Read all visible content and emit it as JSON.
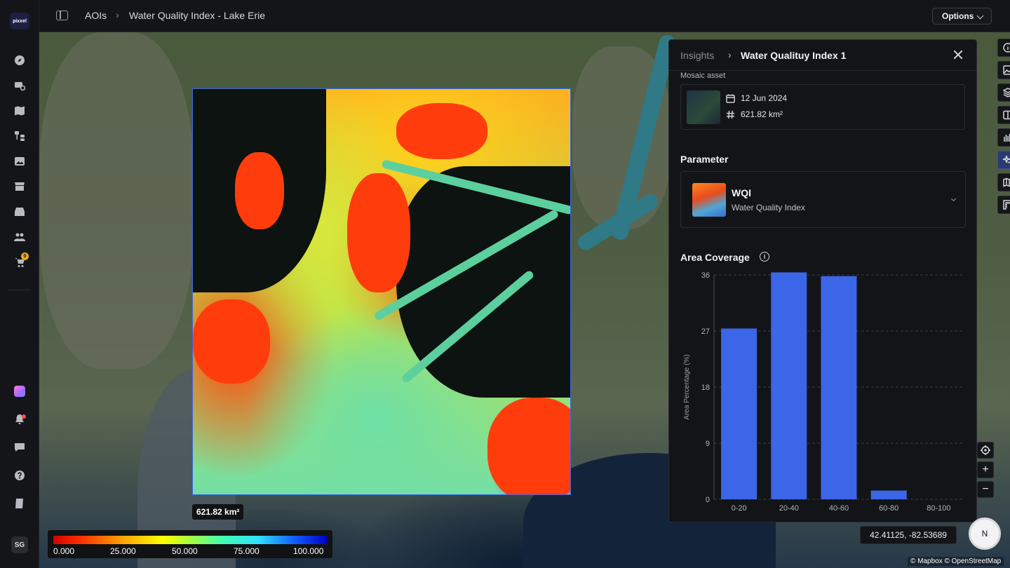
{
  "app": {
    "logo_text": "pixxel",
    "avatar_initials": "SG",
    "cart_count": "0"
  },
  "breadcrumb": {
    "root": "AOIs",
    "current": "Water Quality Index - Lake Erie"
  },
  "toolbar": {
    "options_label": "Options"
  },
  "map": {
    "area_label": "621.82 km²",
    "legend_ticks": [
      "0.000",
      "25.000",
      "50.000",
      "75.000",
      "100.000"
    ],
    "coordinates": "42.41125, -82.53689",
    "compass_label": "N",
    "attribution": "© Mapbox © OpenStreetMap",
    "zoom_in": "+",
    "zoom_out": "−"
  },
  "panel": {
    "crumb_root": "Insights",
    "title": "Water Qualituy Index 1",
    "mosaic_label": "Mosaic asset",
    "mosaic_date": "12 Jun 2024",
    "mosaic_area": "621.82 km²",
    "parameter_heading": "Parameter",
    "parameter_name": "WQI",
    "parameter_desc": "Water Quality Index",
    "coverage_heading": "Area Coverage",
    "info_glyph": "i"
  },
  "chart_data": {
    "type": "bar",
    "title": "",
    "xlabel": "",
    "ylabel": "Area Percentage (%)",
    "categories": [
      "0-20",
      "20-40",
      "40-60",
      "60-80",
      "80-100"
    ],
    "values": [
      27.4,
      36.4,
      35.8,
      1.4,
      0
    ],
    "yticks": [
      0,
      9,
      18,
      27,
      36
    ],
    "ylim": [
      0,
      36
    ],
    "bar_color": "#3c66e8",
    "grid": true
  },
  "colors": {
    "accent": "#3c66e8",
    "panel_bg": "#131417",
    "nav_bg": "#141518"
  }
}
